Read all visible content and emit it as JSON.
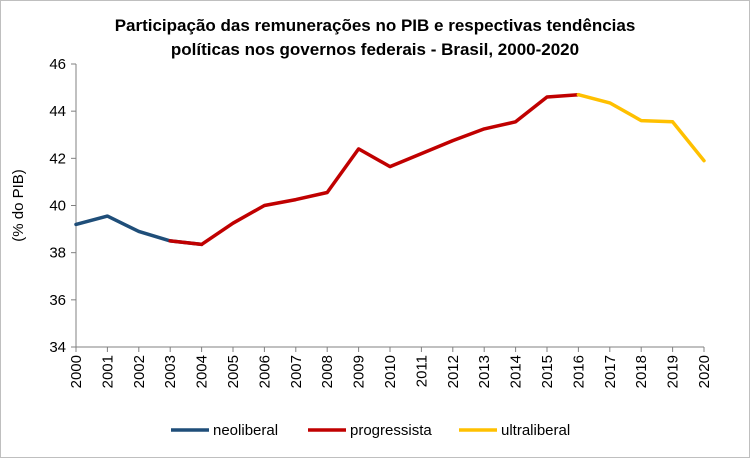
{
  "chart_data": {
    "type": "line",
    "title_line1": "Participação das remunerações no PIB e respectivas tendências",
    "title_line2": "políticas nos governos federais - Brasil, 2000-2020",
    "xlabel": "",
    "ylabel": "(% do PIB)",
    "ylim": [
      34,
      46
    ],
    "yticks": [
      34,
      36,
      38,
      40,
      42,
      44,
      46
    ],
    "grid": false,
    "legend_position": "bottom",
    "x": [
      "2000",
      "2001",
      "2002",
      "2003",
      "2004",
      "2005",
      "2006",
      "2007",
      "2008",
      "2009",
      "2010",
      "2011",
      "2012",
      "2013",
      "2014",
      "2015",
      "2016",
      "2017",
      "2018",
      "2019",
      "2020"
    ],
    "series": [
      {
        "name": "neoliberal",
        "color": "#1f4e79",
        "x": [
          "2000",
          "2001",
          "2002",
          "2003",
          "2004"
        ],
        "values": [
          39.2,
          39.55,
          38.9,
          38.5,
          38.35
        ]
      },
      {
        "name": "progressista",
        "color": "#c00000",
        "x": [
          "2003",
          "2004",
          "2005",
          "2006",
          "2007",
          "2008",
          "2009",
          "2010",
          "2011",
          "2012",
          "2013",
          "2014",
          "2015",
          "2016"
        ],
        "values": [
          38.5,
          38.35,
          39.25,
          40.0,
          40.25,
          40.55,
          42.4,
          41.65,
          42.2,
          42.75,
          43.25,
          43.55,
          44.6,
          44.7
        ]
      },
      {
        "name": "ultraliberal",
        "color": "#ffc000",
        "x": [
          "2016",
          "2017",
          "2018",
          "2019",
          "2020"
        ],
        "values": [
          44.7,
          44.35,
          43.6,
          43.55,
          41.9
        ]
      }
    ]
  }
}
